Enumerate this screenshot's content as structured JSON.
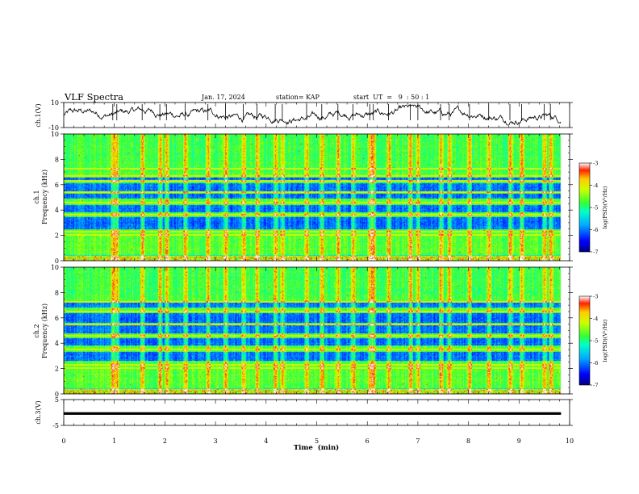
{
  "header": {
    "title": "VLF Spectra",
    "date": "Jan. 17, 2024",
    "station": "station= KAP",
    "start": "start  UT  =   9  : 50 : 1"
  },
  "chart_data": [
    {
      "type": "line",
      "panel": "ch1-waveform",
      "ylabel": "ch.1(V)",
      "ylim": [
        -10,
        10
      ],
      "yticks": [
        {
          "v": 10,
          "label": "10"
        },
        {
          "v": -10,
          "label": "-10"
        }
      ],
      "xlim": [
        0,
        10
      ],
      "trace_color": "#000000"
    },
    {
      "type": "heatmap",
      "panel": "ch1-spectrogram",
      "ylabel": "ch.1\nFrequency  (kHz)",
      "ylim": [
        0,
        10
      ],
      "yticks": [
        0,
        2,
        4,
        6,
        8,
        10
      ],
      "xlim": [
        0,
        10
      ],
      "data_end_min": 9.83,
      "low_bands_khz": [
        [
          2.5,
          3.4
        ],
        [
          3.8,
          4.4
        ],
        [
          4.9,
          5.3
        ],
        [
          5.5,
          6.1
        ],
        [
          6.3,
          6.6
        ]
      ],
      "high_lines_khz": [
        2.0,
        2.3,
        3.6,
        4.6,
        5.4,
        6.3,
        6.7,
        7.3
      ],
      "colorbar": {
        "label": "log(PSD)(V²/Hz)",
        "range": [
          -7,
          -3
        ],
        "ticks": [
          "-3",
          "-4",
          "-5",
          "-6",
          "-7"
        ]
      }
    },
    {
      "type": "heatmap",
      "panel": "ch2-spectrogram",
      "ylabel": "ch.2\nFrequency  (kHz)",
      "ylim": [
        0,
        10
      ],
      "yticks": [
        0,
        2,
        4,
        6,
        8,
        10
      ],
      "xlim": [
        0,
        10
      ],
      "data_end_min": 9.83,
      "low_bands_khz": [
        [
          2.6,
          3.3
        ],
        [
          3.8,
          4.4
        ],
        [
          4.8,
          5.4
        ],
        [
          5.6,
          6.4
        ],
        [
          6.8,
          7.2
        ]
      ],
      "high_lines_khz": [
        2.0,
        2.3,
        3.5,
        4.6,
        5.5,
        6.5,
        7.3
      ],
      "colorbar": {
        "label": "log(PSD)(V²/Hz)",
        "range": [
          -7,
          -3
        ],
        "ticks": [
          "-3",
          "-4",
          "-5",
          "-6",
          "-7"
        ]
      }
    },
    {
      "type": "line",
      "panel": "ch3-waveform",
      "ylabel": "ch.3(V)",
      "ylim": [
        -5,
        5
      ],
      "yticks": [
        {
          "v": 5,
          "label": "5"
        },
        {
          "v": -5,
          "label": "-5"
        }
      ],
      "xlim": [
        0,
        10
      ],
      "xlabel": "Time  (min)",
      "xticks": [
        "0",
        "1",
        "2",
        "3",
        "4",
        "5",
        "6",
        "7",
        "8",
        "9",
        "10"
      ],
      "trace_color": "#000000",
      "band_v": [
        -0.9,
        0.1
      ]
    }
  ],
  "bursts_min": [
    0.97,
    1.05,
    1.55,
    1.9,
    2.03,
    2.4,
    2.85,
    3.2,
    3.55,
    3.82,
    4.18,
    4.32,
    4.8,
    5.1,
    5.42,
    5.72,
    6.05,
    6.12,
    6.42,
    6.85,
    7.0,
    7.45,
    7.62,
    8.02,
    8.4,
    8.82,
    9.05,
    9.5,
    9.62
  ]
}
